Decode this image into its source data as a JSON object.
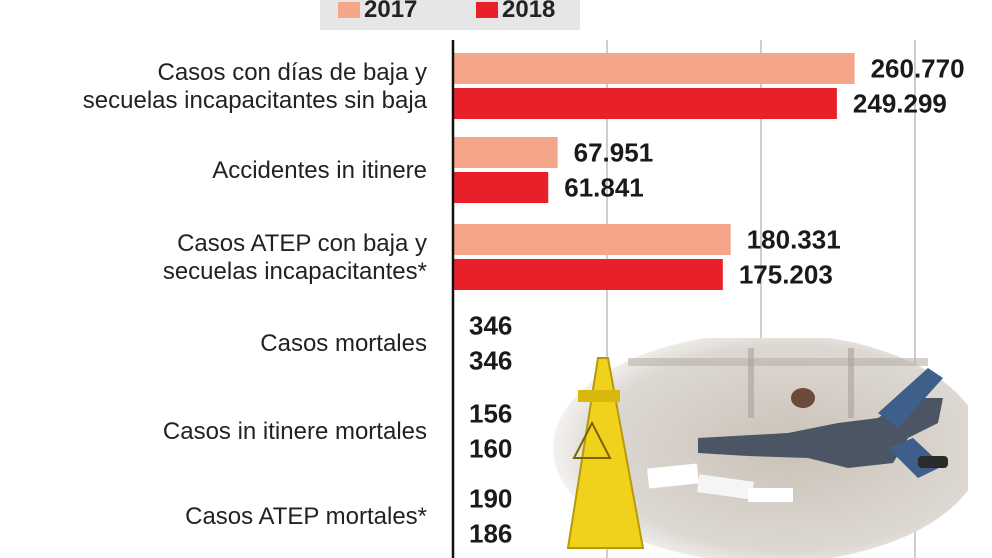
{
  "legend": [
    {
      "name": "2017",
      "color": "#f5a58a"
    },
    {
      "name": "2018",
      "color": "#e8202a"
    }
  ],
  "chart_data": {
    "type": "bar",
    "orientation": "horizontal",
    "categories": [
      [
        "Casos con días de baja y",
        "secuelas incapacitantes sin baja"
      ],
      [
        "Accidentes in itinere"
      ],
      [
        "Casos ATEP con baja y",
        "secuelas incapacitantes*"
      ],
      [
        "Casos mortales"
      ],
      [
        "Casos in itinere mortales"
      ],
      [
        "Casos ATEP mortales*"
      ]
    ],
    "series": [
      {
        "name": "2017",
        "values": [
          260770,
          67951,
          180331,
          346,
          156,
          190
        ],
        "labels": [
          "260.770",
          "67.951",
          "180.331",
          "346",
          "156",
          "190"
        ]
      },
      {
        "name": "2018",
        "values": [
          249299,
          61841,
          175203,
          346,
          160,
          186
        ],
        "labels": [
          "249.299",
          "61.841",
          "175.203",
          "346",
          "160",
          "186"
        ]
      }
    ],
    "xlim": [
      0,
      300000
    ],
    "grid": true,
    "legend_position": "top"
  },
  "colors": {
    "s2017": "#f5a58a",
    "s2018": "#e8202a",
    "grid": "#bdbdbd",
    "axis": "#111111"
  }
}
